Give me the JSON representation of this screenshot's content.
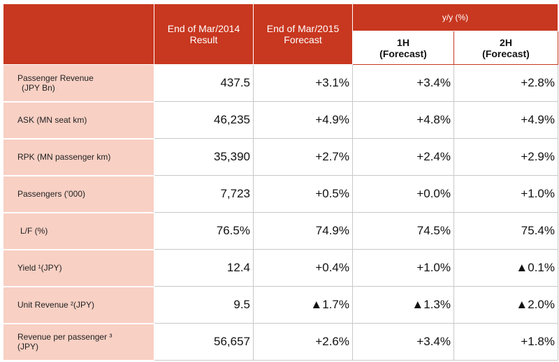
{
  "table": {
    "headers": {
      "end_2014": [
        "End of Mar/2014",
        "Result"
      ],
      "end_2015": [
        "End of Mar/2015",
        "Forecast"
      ],
      "yy": "y/y (%)",
      "h1": [
        "1H",
        "(Forecast)"
      ],
      "h2": [
        "2H",
        "(Forecast)"
      ]
    },
    "rows": [
      {
        "label": [
          "Passenger Revenue",
          "(JPY Bn)"
        ],
        "values": [
          "437.5",
          "+3.1%",
          "+3.4%",
          "+2.8%"
        ]
      },
      {
        "label": [
          "ASK (MN seat km)"
        ],
        "values": [
          "46,235",
          "+4.9%",
          "+4.8%",
          "+4.9%"
        ]
      },
      {
        "label": [
          "RPK (MN passenger km)"
        ],
        "values": [
          "35,390",
          "+2.7%",
          "+2.4%",
          "+2.9%"
        ]
      },
      {
        "label": [
          "Passengers ('000)"
        ],
        "values": [
          "7,723",
          "+0.5%",
          "+0.0%",
          "+1.0%"
        ]
      },
      {
        "label": [
          "L/F (%)"
        ],
        "values": [
          "76.5%",
          "74.9%",
          "74.5%",
          "75.4%"
        ]
      },
      {
        "label": [
          "Yield ¹(JPY)"
        ],
        "values": [
          "12.4",
          "+0.4%",
          "+1.0%",
          "▲0.1%"
        ]
      },
      {
        "label": [
          "Unit Revenue ²(JPY)"
        ],
        "values": [
          "9.5",
          "▲1.7%",
          "▲1.3%",
          "▲2.0%"
        ]
      },
      {
        "label": [
          "Revenue per passenger ³",
          "(JPY)"
        ],
        "values": [
          "56,657",
          "+2.6%",
          "+3.4%",
          "+1.8%"
        ]
      }
    ]
  }
}
